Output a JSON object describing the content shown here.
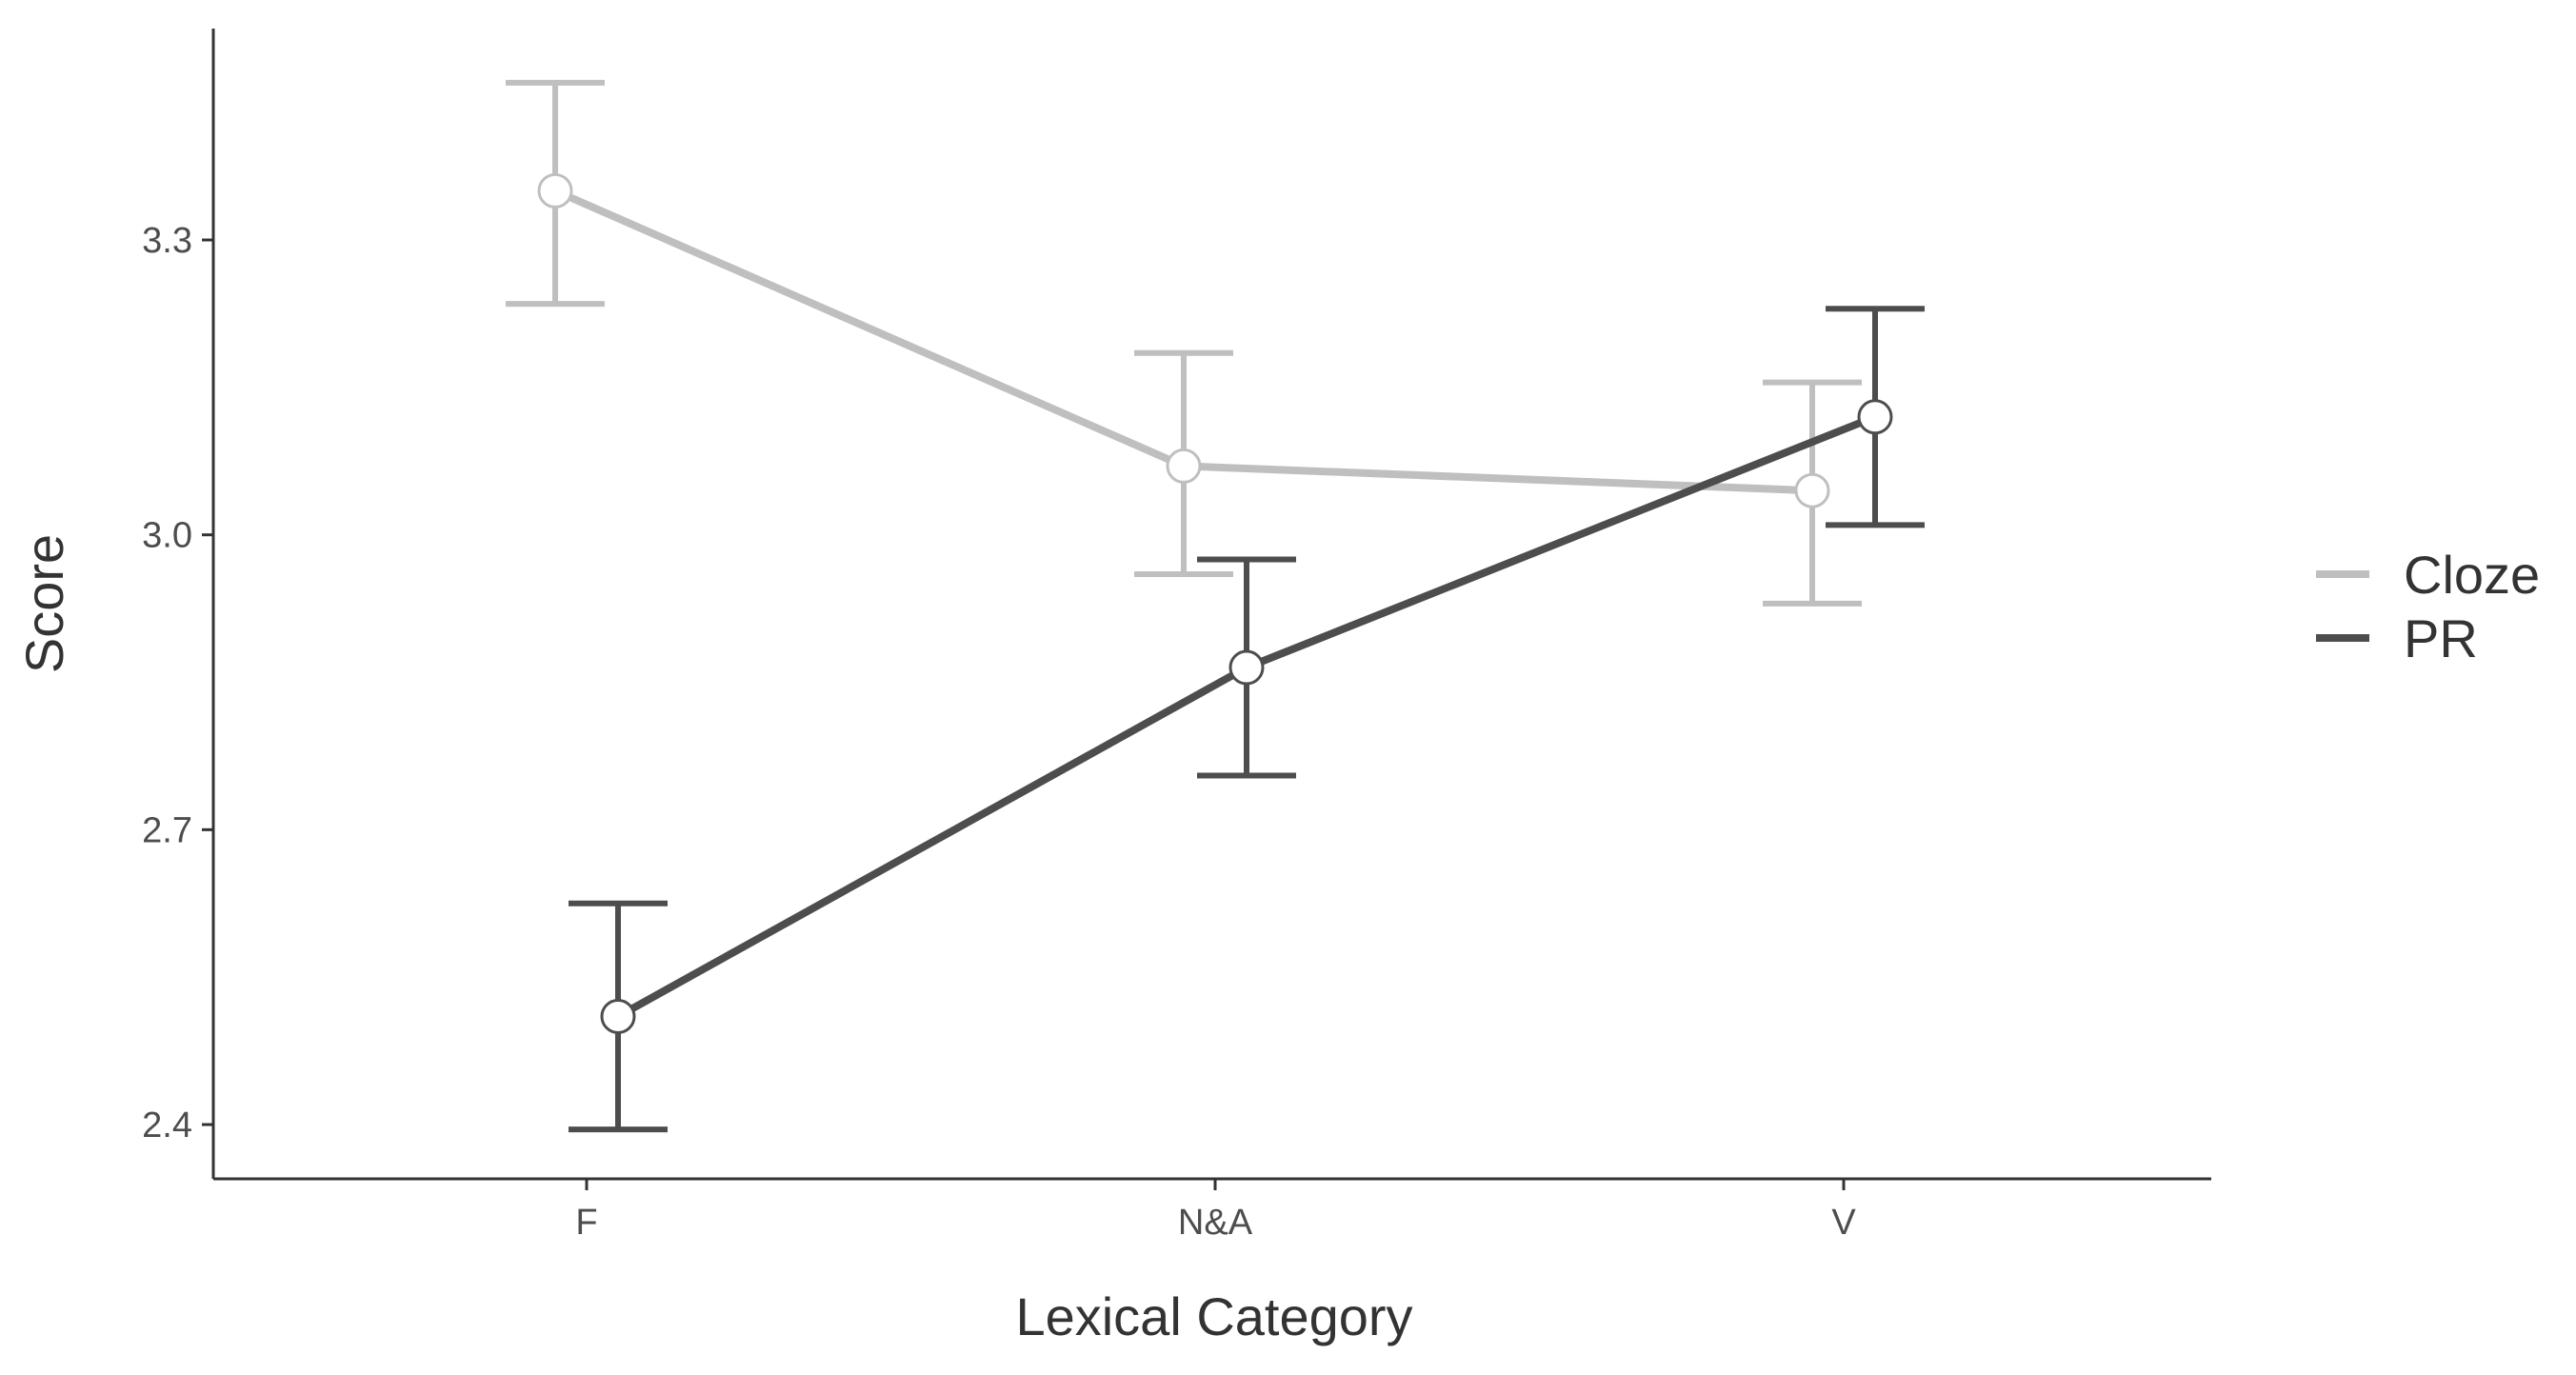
{
  "chart_data": {
    "type": "line",
    "title": "",
    "xlabel": "Lexical Category",
    "ylabel": "Score",
    "categories": [
      "F",
      "N&A",
      "V"
    ],
    "ylim": [
      2.345,
      3.515
    ],
    "yticks": [
      2.4,
      2.7,
      3.0,
      3.3
    ],
    "ytick_labels": [
      "2.4",
      "2.7",
      "3.0",
      "3.3"
    ],
    "grid": false,
    "legend_position": "right",
    "series": [
      {
        "name": "Cloze",
        "color": "#bfbfbf",
        "x_offset": -0.05,
        "values": [
          3.35,
          3.07,
          3.045
        ],
        "err_low": [
          3.235,
          2.96,
          2.93
        ],
        "err_high": [
          3.46,
          3.185,
          3.155
        ]
      },
      {
        "name": "PR",
        "color": "#4d4d4d",
        "x_offset": 0.05,
        "values": [
          2.51,
          2.865,
          3.12
        ],
        "err_low": [
          2.395,
          2.755,
          3.01
        ],
        "err_high": [
          2.625,
          2.975,
          3.23
        ]
      }
    ]
  }
}
